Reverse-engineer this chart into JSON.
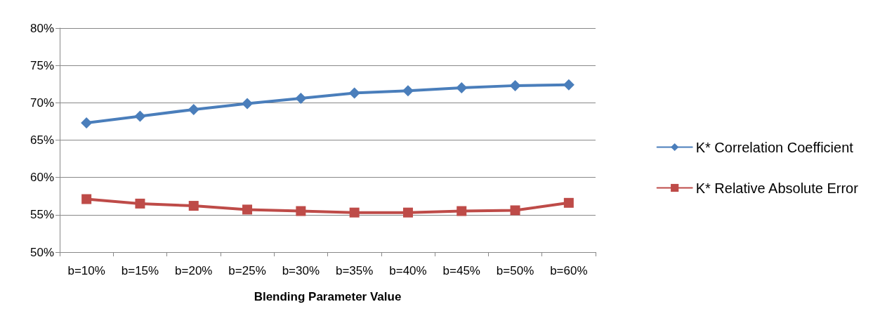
{
  "chart_data": {
    "type": "line",
    "xlabel": "Blending Parameter Value",
    "categories": [
      "b=10%",
      "b=15%",
      "b=20%",
      "b=25%",
      "b=30%",
      "b=35%",
      "b=40%",
      "b=45%",
      "b=50%",
      "b=60%"
    ],
    "series": [
      {
        "name": "K* Correlation Coefficient",
        "color": "#4a7ebb",
        "marker": "diamond",
        "values": [
          67.3,
          68.2,
          69.1,
          69.9,
          70.6,
          71.3,
          71.6,
          72.0,
          72.3,
          72.4
        ]
      },
      {
        "name": "K* Relative Absolute Error",
        "color": "#be4b48",
        "marker": "square",
        "values": [
          57.1,
          56.5,
          56.2,
          55.7,
          55.5,
          55.3,
          55.3,
          55.5,
          55.6,
          56.6
        ]
      }
    ],
    "ylim": [
      50,
      80
    ],
    "yticks": [
      {
        "value": 50,
        "label": "50%"
      },
      {
        "value": 55,
        "label": "55%"
      },
      {
        "value": 60,
        "label": "60%"
      },
      {
        "value": 65,
        "label": "65%"
      },
      {
        "value": 70,
        "label": "70%"
      },
      {
        "value": 75,
        "label": "75%"
      },
      {
        "value": 80,
        "label": "80%"
      }
    ],
    "grid": "y",
    "legend": "right",
    "line_style": "solid"
  }
}
